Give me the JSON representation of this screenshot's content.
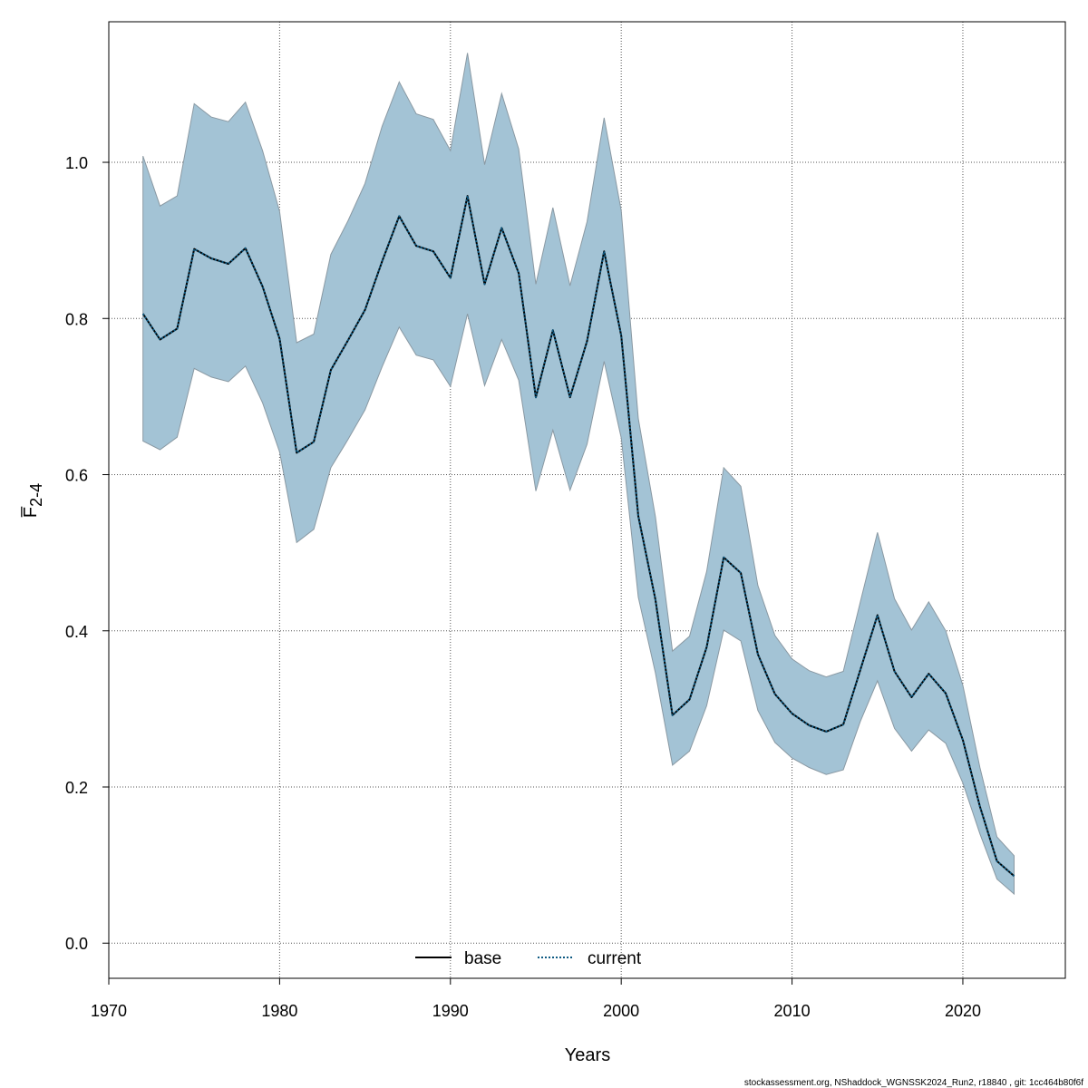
{
  "chart_data": {
    "type": "line",
    "xlabel": "Years",
    "ylabel": "F̅",
    "ylabel_subscript": "2-4",
    "xlim": [
      1970,
      2026
    ],
    "ylim": [
      -0.045,
      1.18
    ],
    "x_ticks": [
      1970,
      1980,
      1990,
      2000,
      2010,
      2020
    ],
    "y_ticks": [
      0.0,
      0.2,
      0.4,
      0.6,
      0.8,
      1.0
    ],
    "y_tick_labels": [
      "0.0",
      "0.2",
      "0.4",
      "0.6",
      "0.8",
      "1.0"
    ],
    "grid": true,
    "legend_placement": "bottom-center",
    "band_color": "#a3c3d5",
    "band_edge_color": "#8a99a3",
    "x": [
      1972,
      1973,
      1974,
      1975,
      1976,
      1977,
      1978,
      1979,
      1980,
      1981,
      1982,
      1983,
      1984,
      1985,
      1986,
      1987,
      1988,
      1989,
      1990,
      1991,
      1992,
      1993,
      1994,
      1995,
      1996,
      1997,
      1998,
      1999,
      2000,
      2001,
      2002,
      2003,
      2004,
      2005,
      2006,
      2007,
      2008,
      2009,
      2010,
      2011,
      2012,
      2013,
      2014,
      2015,
      2016,
      2017,
      2018,
      2019,
      2020,
      2021,
      2022,
      2023
    ],
    "band_upper": [
      1.008,
      0.944,
      0.957,
      1.075,
      1.058,
      1.052,
      1.077,
      1.015,
      0.937,
      0.769,
      0.78,
      0.882,
      0.925,
      0.973,
      1.046,
      1.103,
      1.062,
      1.055,
      1.015,
      1.14,
      0.997,
      1.088,
      1.017,
      0.844,
      0.942,
      0.842,
      0.924,
      1.057,
      0.938,
      0.672,
      0.546,
      0.374,
      0.393,
      0.476,
      0.609,
      0.585,
      0.458,
      0.394,
      0.364,
      0.349,
      0.341,
      0.348,
      0.437,
      0.526,
      0.441,
      0.401,
      0.437,
      0.4,
      0.33,
      0.225,
      0.136,
      0.112
    ],
    "band_lower": [
      0.643,
      0.632,
      0.648,
      0.736,
      0.725,
      0.719,
      0.739,
      0.692,
      0.629,
      0.513,
      0.53,
      0.609,
      0.645,
      0.683,
      0.738,
      0.789,
      0.753,
      0.747,
      0.713,
      0.806,
      0.714,
      0.773,
      0.721,
      0.579,
      0.657,
      0.58,
      0.639,
      0.745,
      0.647,
      0.443,
      0.346,
      0.228,
      0.246,
      0.304,
      0.401,
      0.387,
      0.298,
      0.257,
      0.237,
      0.225,
      0.216,
      0.222,
      0.284,
      0.336,
      0.275,
      0.246,
      0.273,
      0.256,
      0.205,
      0.14,
      0.082,
      0.063
    ],
    "series": [
      {
        "name": "base",
        "color": "#000000",
        "style": "solid",
        "values": [
          0.806,
          0.773,
          0.787,
          0.889,
          0.877,
          0.87,
          0.89,
          0.841,
          0.774,
          0.628,
          0.642,
          0.734,
          0.772,
          0.811,
          0.873,
          0.931,
          0.893,
          0.886,
          0.852,
          0.957,
          0.844,
          0.916,
          0.858,
          0.699,
          0.785,
          0.699,
          0.771,
          0.886,
          0.778,
          0.547,
          0.44,
          0.292,
          0.312,
          0.379,
          0.494,
          0.474,
          0.37,
          0.319,
          0.294,
          0.279,
          0.271,
          0.28,
          0.35,
          0.42,
          0.348,
          0.315,
          0.345,
          0.32,
          0.26,
          0.175,
          0.105,
          0.086
        ]
      },
      {
        "name": "current",
        "color": "#0e5a82",
        "style": "dotted",
        "values": [
          0.806,
          0.773,
          0.787,
          0.889,
          0.877,
          0.87,
          0.89,
          0.841,
          0.774,
          0.628,
          0.642,
          0.734,
          0.772,
          0.811,
          0.873,
          0.931,
          0.893,
          0.886,
          0.852,
          0.957,
          0.844,
          0.916,
          0.858,
          0.699,
          0.785,
          0.699,
          0.771,
          0.886,
          0.778,
          0.547,
          0.44,
          0.292,
          0.312,
          0.379,
          0.494,
          0.474,
          0.37,
          0.319,
          0.294,
          0.279,
          0.271,
          0.28,
          0.35,
          0.42,
          0.348,
          0.315,
          0.345,
          0.32,
          0.26,
          0.175,
          0.105,
          0.086
        ]
      }
    ]
  },
  "footer": "stockassessment.org, NShaddock_WGNSSK2024_Run2, r18840 , git: 1cc464b80f6f"
}
